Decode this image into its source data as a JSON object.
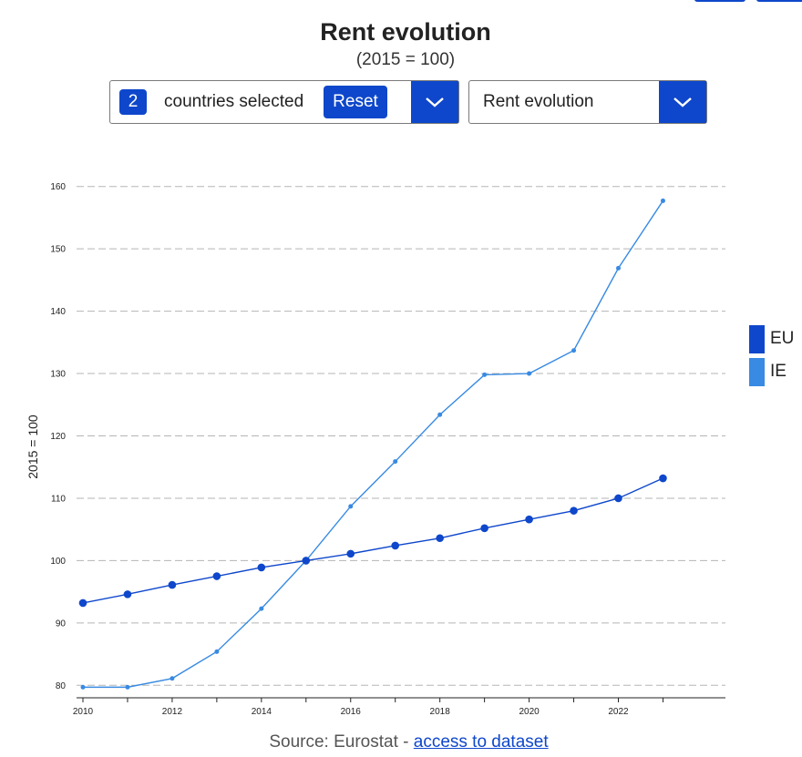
{
  "header": {
    "title": "Rent evolution",
    "subtitle": "(2015 = 100)"
  },
  "controls": {
    "country_count": "2",
    "countries_label": "countries selected",
    "reset_label": "Reset",
    "indicator_value": "Rent evolution"
  },
  "footer": {
    "source_prefix": "Source: Eurostat -",
    "link_text": "access to dataset"
  },
  "colors": {
    "accent": "#0e47cb",
    "eu": "#0e47cb",
    "ie": "#388ae2"
  },
  "icons": [
    "chevron-down-icon"
  ],
  "chart_data": {
    "type": "line",
    "title": "Rent evolution",
    "subtitle": "(2015 = 100)",
    "xlabel": "",
    "ylabel": "2015 = 100",
    "x": [
      2010,
      2011,
      2012,
      2013,
      2014,
      2015,
      2016,
      2017,
      2018,
      2019,
      2020,
      2021,
      2022,
      2023
    ],
    "x_ticks": [
      2010,
      2012,
      2014,
      2016,
      2018,
      2020,
      2022
    ],
    "xlim": [
      2010,
      2024.4
    ],
    "ylim": [
      78,
      162
    ],
    "y_ticks": [
      80,
      90,
      100,
      110,
      120,
      130,
      140,
      150,
      160
    ],
    "grid": true,
    "legend_position": "right",
    "series": [
      {
        "name": "EU",
        "color": "#0e47cb",
        "values": [
          93.2,
          94.6,
          96.1,
          97.5,
          98.9,
          100.0,
          101.1,
          102.4,
          103.6,
          105.2,
          106.6,
          108.0,
          110.0,
          113.2
        ]
      },
      {
        "name": "IE",
        "color": "#388ae2",
        "values": [
          79.7,
          79.7,
          81.1,
          85.4,
          92.3,
          100.0,
          108.7,
          115.9,
          123.4,
          129.8,
          130.0,
          133.7,
          146.9,
          157.7
        ]
      }
    ]
  }
}
